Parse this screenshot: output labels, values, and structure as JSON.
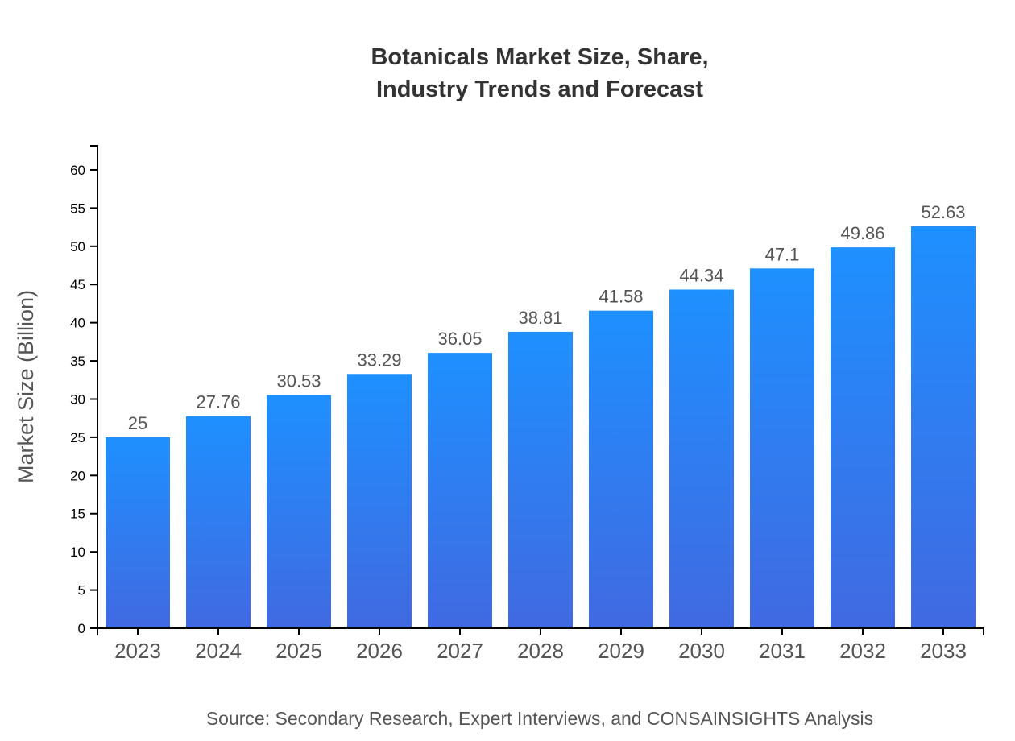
{
  "chart_data": {
    "type": "bar",
    "title": [
      "Botanicals Market Size, Share,",
      "Industry Trends and Forecast"
    ],
    "xlabel": "",
    "ylabel": "Market Size (Billion)",
    "categories": [
      "2023",
      "2024",
      "2025",
      "2026",
      "2027",
      "2028",
      "2029",
      "2030",
      "2031",
      "2032",
      "2033"
    ],
    "values": [
      25,
      27.76,
      30.53,
      33.29,
      36.05,
      38.81,
      41.58,
      44.34,
      47.1,
      49.86,
      52.63
    ],
    "ylim": [
      0,
      63.16
    ],
    "yticks": [
      0,
      5,
      10,
      15,
      20,
      25,
      30,
      35,
      40,
      45,
      50,
      55,
      60
    ],
    "grid": false,
    "legend": "none",
    "colors": {
      "bar_top": "#1E90FF",
      "bar_bottom": "#4169E1"
    },
    "source": "Source: Secondary Research, Expert Interviews, and CONSAINSIGHTS Analysis"
  }
}
